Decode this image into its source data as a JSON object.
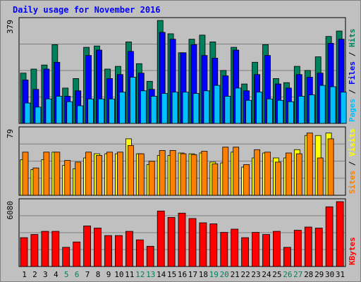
{
  "title": "Daily usage for November 2016",
  "colors": {
    "frame_bg": "#c0c0c0",
    "panel_bg": "#c0c0c0",
    "grid": "#808080",
    "hits": "#00805c",
    "files": "#0000ff",
    "pages": "#00c0ff",
    "visits": "#ffff00",
    "sites": "#ff8000",
    "kbytes": "#ff0000",
    "weekday_label": "#000000",
    "weekend_label": "#00805c"
  },
  "chart_data": [
    {
      "type": "bar",
      "panel": "hits-files-pages",
      "ymax_label": "379",
      "ymax": 379,
      "legend": [
        {
          "name": "Pages",
          "color": "#00c0ff"
        },
        {
          "name": "Files",
          "color": "#0000ff"
        },
        {
          "name": "Hits",
          "color": "#00805c"
        }
      ],
      "legend_separator": " / ",
      "categories": [
        "1",
        "2",
        "3",
        "4",
        "5",
        "6",
        "7",
        "8",
        "9",
        "10",
        "11",
        "12",
        "13",
        "14",
        "15",
        "16",
        "17",
        "18",
        "19",
        "20",
        "21",
        "22",
        "23",
        "24",
        "25",
        "26",
        "27",
        "28",
        "29",
        "30",
        "31"
      ],
      "weekend_days": [
        "5",
        "6",
        "12",
        "13",
        "19",
        "20",
        "26",
        "27"
      ],
      "series": [
        {
          "name": "Hits",
          "values": [
            185,
            200,
            215,
            290,
            130,
            165,
            280,
            285,
            200,
            210,
            300,
            220,
            155,
            379,
            330,
            260,
            310,
            325,
            300,
            195,
            280,
            145,
            225,
            290,
            165,
            150,
            210,
            195,
            245,
            320,
            340
          ]
        },
        {
          "name": "Files",
          "values": [
            160,
            125,
            200,
            225,
            100,
            120,
            250,
            270,
            165,
            180,
            265,
            185,
            125,
            335,
            310,
            260,
            290,
            250,
            240,
            175,
            270,
            120,
            180,
            250,
            145,
            130,
            180,
            170,
            185,
            295,
            310
          ]
        },
        {
          "name": "Pages",
          "values": [
            75,
            60,
            90,
            100,
            80,
            65,
            90,
            90,
            90,
            115,
            170,
            120,
            100,
            110,
            115,
            115,
            110,
            120,
            140,
            100,
            130,
            85,
            115,
            90,
            85,
            80,
            100,
            105,
            140,
            135,
            115
          ]
        }
      ],
      "ylim": [
        0,
        379
      ]
    },
    {
      "type": "bar",
      "panel": "visits-sites",
      "ymax_label": "79",
      "ymax": 79,
      "legend": [
        {
          "name": "Sites",
          "color": "#ff8000"
        },
        {
          "name": "Visits",
          "color": "#ffff00"
        }
      ],
      "legend_separator": " / ",
      "categories": [
        "1",
        "2",
        "3",
        "4",
        "5",
        "6",
        "7",
        "8",
        "9",
        "10",
        "11",
        "12",
        "13",
        "14",
        "15",
        "16",
        "17",
        "18",
        "19",
        "20",
        "21",
        "22",
        "23",
        "24",
        "25",
        "26",
        "27",
        "28",
        "29",
        "30",
        "31"
      ],
      "series": [
        {
          "name": "Visits",
          "values": [
            43,
            31,
            43,
            52,
            36,
            32,
            45,
            50,
            50,
            50,
            68,
            50,
            37,
            48,
            48,
            51,
            50,
            51,
            40,
            39,
            52,
            34,
            45,
            51,
            45,
            45,
            55,
            72,
            72,
            75,
            0
          ]
        },
        {
          "name": "Sites",
          "values": [
            52,
            33,
            52,
            52,
            42,
            40,
            52,
            48,
            52,
            52,
            60,
            50,
            41,
            54,
            54,
            50,
            49,
            53,
            38,
            58,
            58,
            37,
            55,
            52,
            40,
            51,
            50,
            75,
            45,
            68,
            0
          ]
        }
      ],
      "ylim": [
        0,
        79
      ]
    },
    {
      "type": "bar",
      "panel": "kbytes",
      "ymax_label": "6080",
      "ymax": 6080,
      "legend": [
        {
          "name": "KBytes",
          "color": "#ff0000"
        }
      ],
      "categories": [
        "1",
        "2",
        "3",
        "4",
        "5",
        "6",
        "7",
        "8",
        "9",
        "10",
        "11",
        "12",
        "13",
        "14",
        "15",
        "16",
        "17",
        "18",
        "19",
        "20",
        "21",
        "22",
        "23",
        "24",
        "25",
        "26",
        "27",
        "28",
        "29",
        "30",
        "31"
      ],
      "series": [
        {
          "name": "KBytes",
          "values": [
            2700,
            3000,
            3300,
            3300,
            1800,
            2300,
            3800,
            3600,
            2900,
            2900,
            3300,
            2500,
            1900,
            5200,
            4600,
            5000,
            4500,
            4100,
            4000,
            3200,
            3500,
            2700,
            3200,
            3000,
            3300,
            1800,
            3400,
            3700,
            3600,
            5600,
            6080
          ]
        }
      ],
      "ylim": [
        0,
        6080
      ]
    }
  ]
}
